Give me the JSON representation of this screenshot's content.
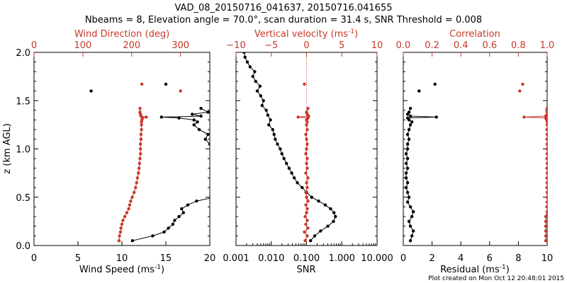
{
  "title": {
    "line1": "VAD_08_20150716_041637, 20150716.041655",
    "line2": "Nbeams = 8, Elevation angle = 70.0°, scan duration = 31.4 s, SNR Threshold = 0.008"
  },
  "footer": "Plot created on Mon Oct 12 20:48:01 2015",
  "colors": {
    "black": "#000000",
    "red": "#c8382a"
  },
  "chart_data": [
    {
      "id": "wind",
      "type": "line",
      "ylabel": "z (km AGL)",
      "ylim": [
        0,
        2
      ],
      "yticks": [
        "0.0",
        "0.5",
        "1.0",
        "1.5",
        "2.0"
      ],
      "bottom_axis": {
        "label": "Wind Speed (ms",
        "label_sup": "-1",
        "label_end": ")",
        "lim": [
          0,
          20
        ],
        "ticks": [
          "0",
          "5",
          "10",
          "15",
          "20"
        ],
        "tick_values": [
          0,
          5,
          10,
          15,
          20
        ]
      },
      "top_axis": {
        "label": "Wind Direction (deg)",
        "lim": [
          0,
          360
        ],
        "ticks": [
          "0",
          "100",
          "200",
          "300"
        ],
        "tick_values": [
          0,
          100,
          200,
          300
        ]
      },
      "series": [
        {
          "name": "Wind speed",
          "axis": "bottom",
          "color": "black",
          "z": [
            0.05,
            0.1,
            0.14,
            0.18,
            0.22,
            0.26,
            0.3,
            0.34,
            0.38,
            0.42,
            0.46,
            0.5,
            0.55,
            0.6,
            0.65,
            0.7,
            0.75,
            0.8,
            0.85,
            0.9,
            0.95,
            1.0,
            1.05,
            1.1,
            1.15,
            1.2,
            1.25,
            1.28,
            1.3,
            1.32,
            1.33,
            1.34,
            1.36,
            1.38,
            1.42
          ],
          "values": [
            11.2,
            13.5,
            14.8,
            15.3,
            15.8,
            16.0,
            16.5,
            17.0,
            16.8,
            17.5,
            18.5,
            20.5,
            21.5,
            22.0,
            22.5,
            22.8,
            23.0,
            22.7,
            23.0,
            22.5,
            21.0,
            20.5,
            20.0,
            19.5,
            19.8,
            18.8,
            18.2,
            18.6,
            18.2,
            16.5,
            14.5,
            19.0,
            18.0,
            19.8,
            19.0
          ]
        },
        {
          "name": "Wind direction",
          "axis": "top",
          "color": "red",
          "z": [
            0.05,
            0.1,
            0.14,
            0.18,
            0.22,
            0.26,
            0.3,
            0.34,
            0.38,
            0.42,
            0.46,
            0.5,
            0.55,
            0.6,
            0.65,
            0.7,
            0.75,
            0.8,
            0.85,
            0.9,
            0.95,
            1.0,
            1.05,
            1.1,
            1.15,
            1.2,
            1.25,
            1.28,
            1.3,
            1.32,
            1.33,
            1.34,
            1.36,
            1.38,
            1.42
          ],
          "values": [
            174,
            175,
            177,
            178,
            180,
            182,
            186,
            190,
            194,
            196,
            198,
            201,
            205,
            208,
            210,
            212,
            214,
            215,
            216,
            217,
            218,
            218,
            218,
            219,
            219,
            220,
            220,
            220,
            221,
            222,
            230,
            219,
            218,
            217,
            217
          ]
        },
        {
          "name": "Wind speed (isolated)",
          "axis": "bottom",
          "color": "black",
          "style": "points",
          "z": [
            1.6,
            1.67
          ],
          "values": [
            6.5,
            15.0
          ]
        },
        {
          "name": "Wind direction (isolated)",
          "axis": "top",
          "color": "red",
          "style": "points",
          "z": [
            1.6,
            1.67
          ],
          "values": [
            300,
            221
          ]
        }
      ]
    },
    {
      "id": "vvel",
      "type": "line",
      "ylim": [
        0,
        2
      ],
      "bottom_axis": {
        "label": "SNR",
        "lim": [
          0.001,
          10
        ],
        "scale": "log",
        "ticks": [
          "0.001",
          "0.010",
          "0.100",
          "1.000",
          "10.000"
        ],
        "tick_values": [
          0.001,
          0.01,
          0.1,
          1,
          10
        ]
      },
      "top_axis": {
        "label": "Vertical velocity (ms",
        "label_sup": "-1",
        "label_end": ")",
        "lim": [
          -10,
          10
        ],
        "ticks": [
          "−10",
          "−5",
          "0",
          "5",
          "10"
        ],
        "tick_values": [
          -10,
          -5,
          0,
          5,
          10
        ]
      },
      "series": [
        {
          "name": "SNR",
          "axis": "bottom",
          "color": "black",
          "z": [
            0.05,
            0.1,
            0.15,
            0.2,
            0.25,
            0.3,
            0.34,
            0.38,
            0.42,
            0.46,
            0.5,
            0.55,
            0.6,
            0.65,
            0.7,
            0.75,
            0.8,
            0.85,
            0.9,
            0.95,
            1.0,
            1.05,
            1.1,
            1.15,
            1.2,
            1.25,
            1.3,
            1.35,
            1.4,
            1.45,
            1.5,
            1.55,
            1.6,
            1.65,
            1.7,
            1.75,
            1.8,
            1.85,
            1.9,
            1.95,
            2.0
          ],
          "values": [
            0.13,
            0.17,
            0.25,
            0.4,
            0.58,
            0.66,
            0.6,
            0.48,
            0.34,
            0.22,
            0.14,
            0.1,
            0.075,
            0.055,
            0.045,
            0.038,
            0.032,
            0.027,
            0.023,
            0.02,
            0.018,
            0.015,
            0.013,
            0.012,
            0.011,
            0.0085,
            0.0095,
            0.008,
            0.0072,
            0.0055,
            0.006,
            0.005,
            0.004,
            0.0048,
            0.0036,
            0.003,
            0.0034,
            0.0025,
            0.0021,
            0.0018,
            0.0017
          ]
        },
        {
          "name": "Vertical velocity",
          "axis": "top",
          "color": "red",
          "z": [
            0.05,
            0.1,
            0.14,
            0.18,
            0.22,
            0.26,
            0.3,
            0.34,
            0.38,
            0.42,
            0.46,
            0.5,
            0.55,
            0.6,
            0.65,
            0.7,
            0.75,
            0.8,
            0.85,
            0.9,
            0.95,
            1.0,
            1.05,
            1.1,
            1.15,
            1.2,
            1.25,
            1.28,
            1.3,
            1.32,
            1.33,
            1.34,
            1.36,
            1.38,
            1.42
          ],
          "values": [
            -0.2,
            0.1,
            -0.3,
            0.2,
            -0.1,
            0.1,
            -0.2,
            0.0,
            0.1,
            -0.1,
            0.2,
            0.0,
            -0.1,
            0.1,
            0.0,
            0.2,
            -0.1,
            0.1,
            0.0,
            0.1,
            -0.1,
            0.0,
            0.1,
            0.0,
            -0.1,
            0.1,
            0.0,
            0.1,
            0.0,
            0.2,
            -1.2,
            0.3,
            0.1,
            0.0,
            0.2
          ]
        },
        {
          "name": "Vertical velocity (isolated)",
          "axis": "top",
          "color": "red",
          "style": "points",
          "z": [
            1.67
          ],
          "values": [
            -0.3
          ]
        }
      ]
    },
    {
      "id": "corr",
      "type": "line",
      "ylim": [
        0,
        2
      ],
      "bottom_axis": {
        "label": "Residual (ms",
        "label_sup": "-1",
        "label_end": ")",
        "lim": [
          0,
          10
        ],
        "ticks": [
          "0",
          "2",
          "4",
          "6",
          "8",
          "10"
        ],
        "tick_values": [
          0,
          2,
          4,
          6,
          8,
          10
        ]
      },
      "top_axis": {
        "label": "Correlation",
        "lim": [
          0,
          1
        ],
        "ticks": [
          "0.0",
          "0.2",
          "0.4",
          "0.6",
          "0.8",
          "1.0"
        ],
        "tick_values": [
          0,
          0.2,
          0.4,
          0.6,
          0.8,
          1.0
        ]
      },
      "series": [
        {
          "name": "Residual",
          "axis": "bottom",
          "color": "black",
          "z": [
            0.05,
            0.1,
            0.15,
            0.2,
            0.25,
            0.3,
            0.35,
            0.4,
            0.45,
            0.5,
            0.55,
            0.6,
            0.65,
            0.7,
            0.75,
            0.8,
            0.85,
            0.9,
            0.95,
            1.0,
            1.05,
            1.1,
            1.15,
            1.2,
            1.25,
            1.28,
            1.3,
            1.32,
            1.33,
            1.34,
            1.36,
            1.38,
            1.42
          ],
          "values": [
            0.5,
            0.6,
            0.7,
            0.5,
            0.4,
            0.6,
            0.7,
            0.5,
            0.3,
            0.4,
            0.3,
            0.2,
            0.3,
            0.2,
            0.2,
            0.3,
            0.2,
            0.3,
            0.2,
            0.3,
            0.3,
            0.4,
            0.3,
            0.4,
            0.5,
            0.6,
            0.4,
            0.3,
            2.3,
            0.5,
            0.3,
            0.4,
            0.5
          ]
        },
        {
          "name": "Correlation",
          "axis": "top",
          "color": "red",
          "z": [
            0.05,
            0.1,
            0.15,
            0.2,
            0.25,
            0.3,
            0.35,
            0.4,
            0.45,
            0.5,
            0.55,
            0.6,
            0.65,
            0.7,
            0.75,
            0.8,
            0.85,
            0.9,
            0.95,
            1.0,
            1.05,
            1.1,
            1.15,
            1.2,
            1.25,
            1.28,
            1.3,
            1.32,
            1.33,
            1.34,
            1.36,
            1.38,
            1.42
          ],
          "values": [
            0.99,
            0.99,
            0.99,
            0.99,
            0.99,
            0.99,
            1.0,
            1.0,
            1.0,
            1.0,
            1.0,
            1.0,
            1.0,
            1.0,
            1.0,
            1.0,
            1.0,
            1.0,
            1.0,
            1.0,
            1.0,
            1.0,
            1.0,
            1.0,
            1.0,
            1.0,
            1.0,
            0.99,
            0.84,
            0.99,
            1.0,
            1.0,
            1.0
          ]
        },
        {
          "name": "Residual (isolated)",
          "axis": "bottom",
          "color": "black",
          "style": "points",
          "z": [
            1.6,
            1.67
          ],
          "values": [
            1.1,
            2.2
          ]
        },
        {
          "name": "Correlation (isolated)",
          "axis": "top",
          "color": "red",
          "style": "points",
          "z": [
            1.6,
            1.67
          ],
          "values": [
            0.81,
            0.83
          ]
        }
      ]
    }
  ]
}
